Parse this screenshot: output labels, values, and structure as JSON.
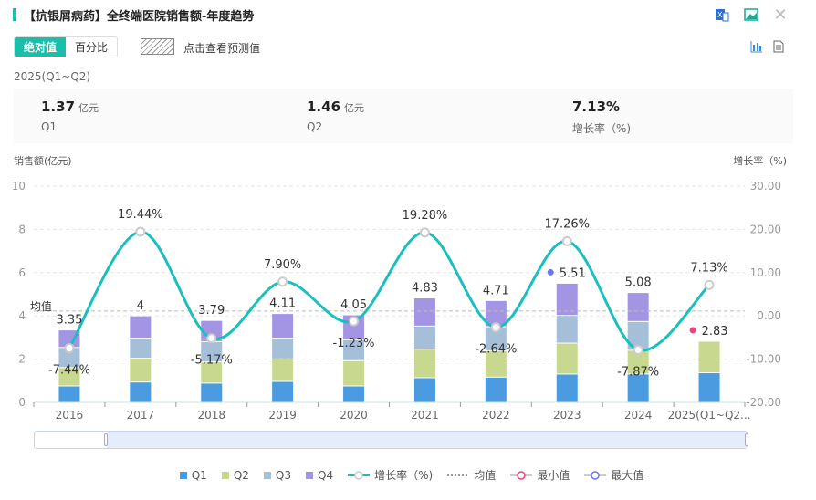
{
  "header": {
    "title": "【抗银屑病药】全终端医院销售额-年度趋势",
    "icons": [
      "excel-export-icon",
      "image-export-icon",
      "close-icon"
    ]
  },
  "toolbar": {
    "mode_absolute": "绝对值",
    "mode_percent": "百分比",
    "forecast_label": "点击查看预测值",
    "view_icons": [
      "bar-chart-icon",
      "table-view-icon"
    ]
  },
  "period": "2025(Q1~Q2)",
  "summary": [
    {
      "value": "1.37",
      "unit": "亿元",
      "label": "Q1"
    },
    {
      "value": "1.46",
      "unit": "亿元",
      "label": "Q2"
    },
    {
      "value": "7.13%",
      "unit": "",
      "label": "增长率（%)"
    }
  ],
  "chart_data": {
    "type": "bar+line",
    "ylabel_left": "销售额(亿元)",
    "ylabel_right": "增长率（%)",
    "ylim_left": [
      0,
      10
    ],
    "yticks_left": [
      "0",
      "2",
      "4",
      "6",
      "8",
      "10"
    ],
    "ylim_right": [
      -20,
      30
    ],
    "yticks_right": [
      "-20.00",
      "-10.00",
      "0.00",
      "10.00",
      "20.00",
      "30.00"
    ],
    "categories": [
      "2016",
      "2017",
      "2018",
      "2019",
      "2020",
      "2021",
      "2022",
      "2023",
      "2024",
      "2025(Q1~Q2..."
    ],
    "series": [
      {
        "name": "Q1",
        "color": "#4a9be0",
        "values": [
          0.76,
          0.94,
          0.89,
          0.97,
          0.76,
          1.14,
          1.17,
          1.31,
          1.31,
          1.37
        ]
      },
      {
        "name": "Q2",
        "color": "#c9d88f",
        "values": [
          0.85,
          1.1,
          0.98,
          1.04,
          1.17,
          1.32,
          1.22,
          1.43,
          1.1,
          1.46
        ]
      },
      {
        "name": "Q3",
        "color": "#a6bfd9",
        "values": [
          0.93,
          0.93,
          0.94,
          0.96,
          0.97,
          1.07,
          1.11,
          1.28,
          1.33,
          null
        ]
      },
      {
        "name": "Q4",
        "color": "#a395e4",
        "values": [
          0.81,
          1.03,
          0.98,
          1.14,
          1.15,
          1.3,
          1.21,
          1.49,
          1.34,
          null
        ]
      }
    ],
    "totals": [
      "3.35",
      "4",
      "3.79",
      "4.11",
      "4.05",
      "4.83",
      "4.71",
      "5.51",
      "5.08",
      "2.83"
    ],
    "growth": {
      "name": "增长率（%)",
      "color": "#1bbfbd",
      "values": [
        -7.44,
        19.44,
        -5.17,
        7.9,
        -1.23,
        19.28,
        -2.64,
        17.26,
        -7.87,
        7.13
      ],
      "labels": [
        "-7.44%",
        "19.44%",
        "-5.17%",
        "7.90%",
        "-1.23%",
        "19.28%",
        "-2.64%",
        "17.26%",
        "-7.87%",
        "7.13%"
      ]
    },
    "average_label": "均值",
    "max": {
      "category": "2023",
      "color": "#6b75f0"
    },
    "min": {
      "category": "2025(Q1~Q2...",
      "color": "#f0407f"
    },
    "legend": [
      "Q1",
      "Q2",
      "Q3",
      "Q4",
      "增长率（%)",
      "均值",
      "最小值",
      "最大值"
    ],
    "grid": true,
    "legend_position": "bottom"
  }
}
